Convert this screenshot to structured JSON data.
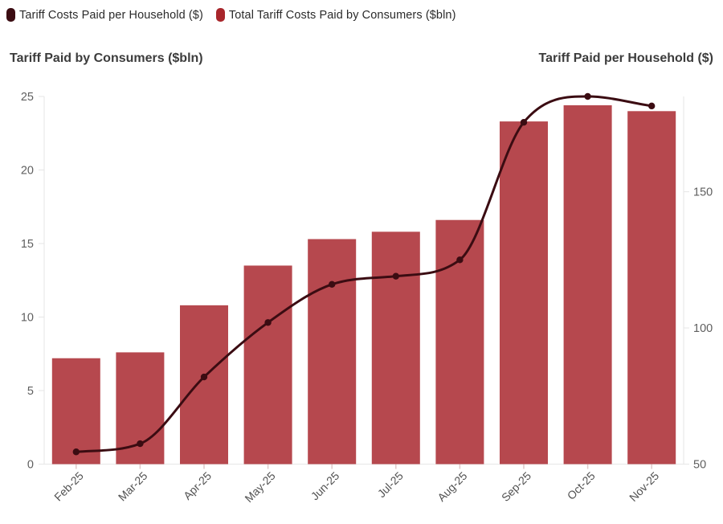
{
  "legend": {
    "items": [
      {
        "label": "Tariff Costs Paid per Household ($)",
        "color": "#3b0c12"
      },
      {
        "label": "Total Tariff Costs Paid by Consumers ($bln)",
        "color": "#a8262b"
      }
    ]
  },
  "titles": {
    "left": "Tariff Paid by Consumers ($bln)",
    "right": "Tariff Paid per Household ($)"
  },
  "chart_data": {
    "type": "bar+line",
    "categories": [
      "Feb-25",
      "Mar-25",
      "Apr-25",
      "May-25",
      "Jun-25",
      "Jul-25",
      "Aug-25",
      "Sep-25",
      "Oct-25",
      "Nov-25"
    ],
    "series": [
      {
        "name": "Total Tariff Costs Paid by Consumers ($bln)",
        "type": "bar",
        "axis": "left",
        "color": "#b6484e",
        "values": [
          7.2,
          7.6,
          10.8,
          13.5,
          15.3,
          15.8,
          16.6,
          23.3,
          24.4,
          24.0
        ]
      },
      {
        "name": "Tariff Costs Paid per Household ($)",
        "type": "line",
        "axis": "right",
        "color": "#3b0c12",
        "values": [
          54.5,
          57.5,
          82,
          102,
          116,
          119,
          125,
          175.5,
          185,
          181.5
        ]
      }
    ],
    "left_axis": {
      "title": "Tariff Paid by Consumers ($bln)",
      "range": [
        0,
        25
      ],
      "ticks": [
        0,
        5,
        10,
        15,
        20,
        25
      ]
    },
    "right_axis": {
      "title": "Tariff Paid per Household ($)",
      "range": [
        50,
        185
      ],
      "ticks": [
        50,
        100,
        150
      ]
    },
    "x_tick_rotation": -45,
    "grid": false,
    "legend_position": "top-left"
  },
  "style": {
    "tick_label_color": "#5f5f5f",
    "x_label_color": "#525252",
    "axis_line_color": "#e6e6e6",
    "x_tick_color": "#dfc9c9",
    "background": "#ffffff"
  }
}
